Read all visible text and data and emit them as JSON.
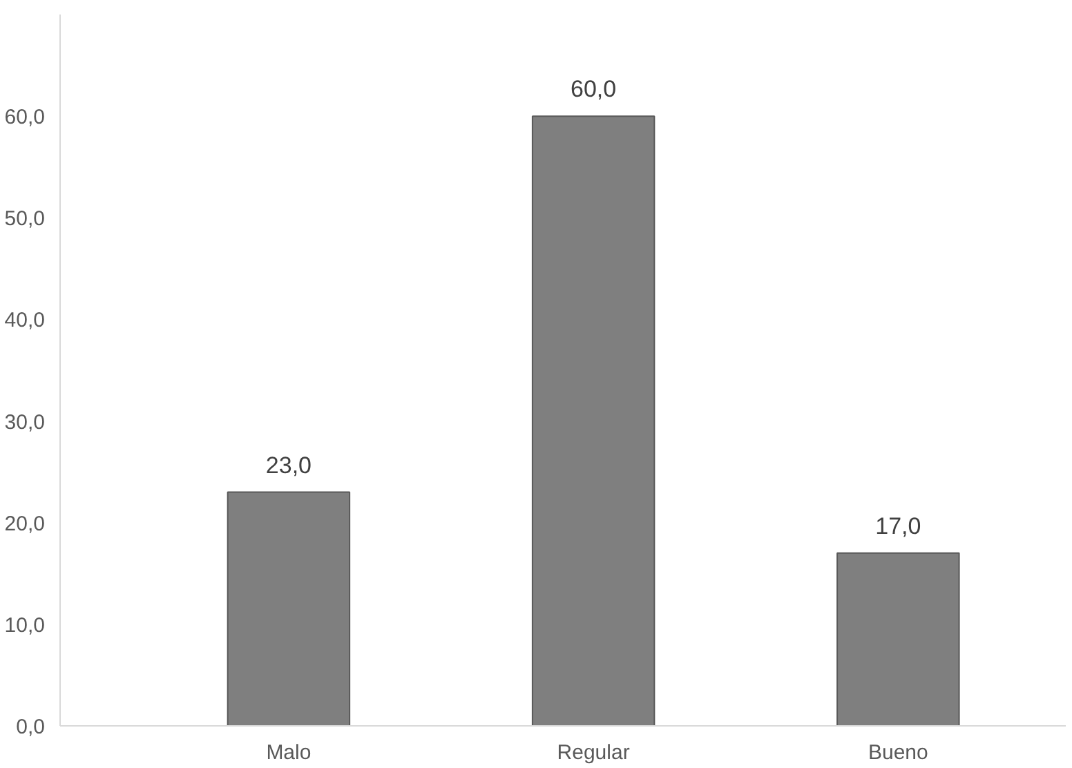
{
  "chart_data": {
    "type": "bar",
    "categories": [
      "Malo",
      "Regular",
      "Bueno"
    ],
    "values": [
      23,
      60,
      17
    ],
    "color": "#7f7f7f",
    "value_labels": [
      "23,0",
      "60,0",
      "17,0"
    ],
    "ylim": [
      0,
      70
    ],
    "yticks": [
      {
        "value": 0,
        "label": "0,0"
      },
      {
        "value": 10,
        "label": "10,0"
      },
      {
        "value": 20,
        "label": "20,0"
      },
      {
        "value": 30,
        "label": "30,0"
      },
      {
        "value": 40,
        "label": "40,0"
      },
      {
        "value": 50,
        "label": "50,0"
      },
      {
        "value": 60,
        "label": "60,0"
      }
    ],
    "grid": false
  }
}
